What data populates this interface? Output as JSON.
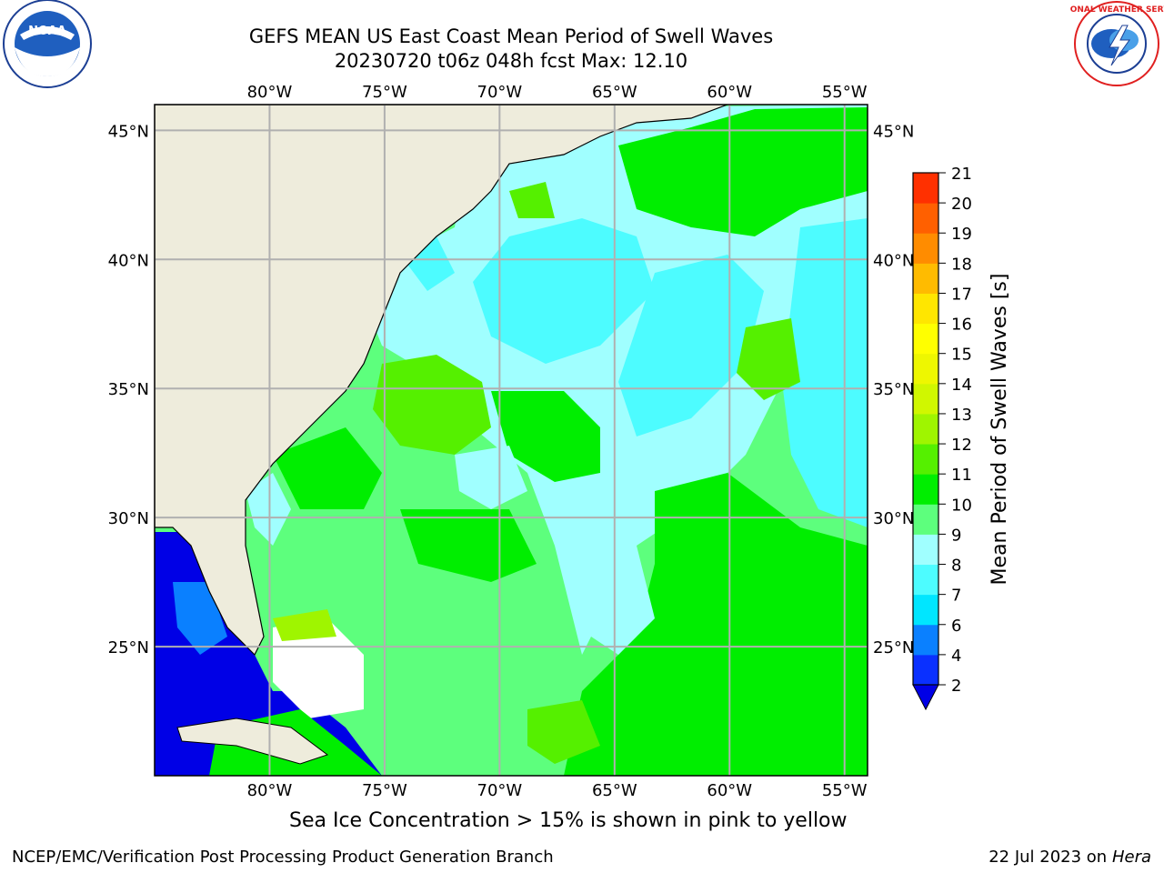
{
  "header": {
    "title_line1": "GEFS MEAN US East Coast Mean Period of Swell Waves",
    "title_line2": "20230720 t06z 048h fcst   Max: 12.10"
  },
  "logos": {
    "left": {
      "icon": "noaa-logo-icon",
      "text": "NOAA"
    },
    "right": {
      "icon": "nws-logo-icon",
      "text": "NATIONAL WEATHER SERVICE"
    }
  },
  "map": {
    "lon_labels": [
      "80°W",
      "75°W",
      "70°W",
      "65°W",
      "60°W",
      "55°W"
    ],
    "lat_labels": [
      "45°N",
      "40°N",
      "35°N",
      "30°N",
      "25°N"
    ],
    "lon_values": [
      -80,
      -75,
      -70,
      -65,
      -60,
      -55
    ],
    "lat_values": [
      45,
      40,
      35,
      30,
      25
    ],
    "extent": {
      "lon_min": -85,
      "lon_max": -54,
      "lat_min": 20,
      "lat_max": 46
    }
  },
  "colorbar": {
    "label": "Mean Period of Swell Waves [s]",
    "ticks": [
      "2",
      "4",
      "6",
      "7",
      "8",
      "9",
      "10",
      "11",
      "12",
      "13",
      "14",
      "15",
      "16",
      "17",
      "18",
      "19",
      "20",
      "21"
    ],
    "colors": [
      "#0a30ff",
      "#0a80ff",
      "#00e6ff",
      "#4dfcff",
      "#a0ffff",
      "#5dff7d",
      "#00ee00",
      "#55f000",
      "#9ff500",
      "#d0f700",
      "#eef700",
      "#ffff00",
      "#ffe600",
      "#ffbb00",
      "#ff8c00",
      "#ff6000",
      "#ff3000",
      "#ff0000"
    ],
    "under_color": "#0000e6"
  },
  "colors": {
    "land": "#eeecdc",
    "grid": "#b0b0b0",
    "ocean_base": "#5dff7d"
  },
  "caption": "Sea Ice Concentration > 15% is shown in pink to yellow",
  "footer": {
    "left": "NCEP/EMC/Verification Post Processing Product Generation Branch",
    "right_prefix": "22 Jul 2023 on ",
    "right_host": "Hera"
  }
}
